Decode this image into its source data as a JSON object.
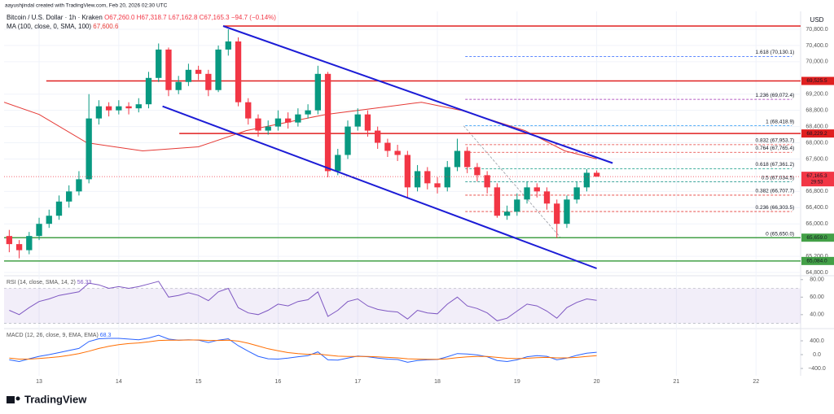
{
  "header": {
    "author": "aayushjindal created with TradingView.com, Feb 20, 2026 02:30 UTC",
    "symbol": "Bitcoin / U.S. Dollar · 1h · Kraken",
    "ohlc": [
      "O67,260.0",
      "H67,318.7",
      "L67,162.8",
      "C67,165.3",
      "−94.7 (−0.14%)"
    ],
    "brand": "TradingView"
  },
  "chart_data": [
    {
      "type": "candlestick",
      "currency": "USD",
      "x": [
        12.625,
        12.75,
        12.875,
        13.0,
        13.125,
        13.25,
        13.375,
        13.5,
        13.625,
        13.75,
        13.875,
        14.0,
        14.125,
        14.25,
        14.375,
        14.5,
        14.625,
        14.75,
        14.875,
        15.0,
        15.125,
        15.25,
        15.375,
        15.5,
        15.625,
        15.75,
        15.875,
        16.0,
        16.125,
        16.25,
        16.375,
        16.5,
        16.625,
        16.75,
        16.875,
        17.0,
        17.125,
        17.25,
        17.375,
        17.5,
        17.625,
        17.75,
        17.875,
        18.0,
        18.125,
        18.25,
        18.375,
        18.5,
        18.625,
        18.75,
        18.875,
        19.0,
        19.125,
        19.25,
        19.375,
        19.5,
        19.625,
        19.75,
        19.875,
        20.0
      ],
      "open": [
        65700,
        65500,
        65350,
        65700,
        66000,
        66200,
        66550,
        66800,
        67100,
        68600,
        68900,
        68800,
        68900,
        68850,
        68950,
        69600,
        70300,
        69300,
        69500,
        69800,
        69700,
        69300,
        70300,
        70500,
        69000,
        68600,
        68300,
        68400,
        68600,
        68500,
        68700,
        68800,
        69700,
        67300,
        67700,
        68400,
        68700,
        68300,
        68000,
        67800,
        67700,
        66900,
        67300,
        67000,
        66900,
        67400,
        67800,
        67400,
        67200,
        66900,
        66200,
        66300,
        66600,
        66900,
        66800,
        66500,
        66000,
        66600,
        66900,
        67260
      ],
      "high": [
        65850,
        65600,
        65800,
        66150,
        66350,
        66700,
        66950,
        67300,
        69200,
        69050,
        69000,
        69050,
        69000,
        69100,
        69750,
        70450,
        70350,
        69650,
        69950,
        69900,
        69800,
        70400,
        70800,
        70600,
        69100,
        68700,
        68550,
        68800,
        68750,
        68850,
        68950,
        69900,
        69750,
        67850,
        68550,
        68850,
        68800,
        68400,
        68100,
        67950,
        67800,
        67450,
        67400,
        67150,
        67550,
        68100,
        67900,
        67500,
        67300,
        67000,
        66450,
        66750,
        67050,
        67000,
        66900,
        66600,
        66700,
        67050,
        67350,
        67318.7
      ],
      "low": [
        65300,
        65150,
        65250,
        65600,
        65900,
        66100,
        66400,
        66700,
        67000,
        68450,
        68650,
        68700,
        68700,
        68750,
        68850,
        69500,
        69150,
        69200,
        69400,
        69550,
        69150,
        69250,
        70150,
        68900,
        68450,
        68150,
        68200,
        68300,
        68350,
        68400,
        68600,
        68700,
        67150,
        67200,
        67600,
        68300,
        68150,
        67850,
        67650,
        67550,
        66650,
        66800,
        66850,
        66750,
        66800,
        67300,
        67250,
        67050,
        66750,
        66150,
        66100,
        66200,
        66500,
        66650,
        66350,
        65650,
        65900,
        66500,
        66800,
        67162.8
      ],
      "close": [
        65500,
        65350,
        65700,
        66000,
        66200,
        66550,
        66800,
        67100,
        68600,
        68900,
        68800,
        68900,
        68850,
        68950,
        69600,
        70300,
        69300,
        69500,
        69800,
        69700,
        69300,
        70300,
        70500,
        69000,
        68600,
        68300,
        68400,
        68600,
        68500,
        68700,
        68800,
        69700,
        67300,
        67700,
        68400,
        68700,
        68300,
        68000,
        67800,
        67700,
        66900,
        67300,
        67000,
        66900,
        67400,
        67800,
        67400,
        67200,
        66900,
        66200,
        66300,
        66600,
        66900,
        66800,
        66500,
        66000,
        66600,
        66900,
        67260,
        67165.3
      ],
      "up_color": "#089981",
      "down_color": "#f23645",
      "xlim": [
        12.56,
        22.56
      ],
      "xticks": [
        13,
        14,
        15,
        16,
        17,
        18,
        19,
        20,
        21,
        22
      ],
      "ylim": [
        64740,
        71121
      ],
      "yticks": [
        {
          "value": 64800,
          "label": "64,800.0"
        },
        {
          "value": 65200,
          "label": "65,200.0"
        },
        {
          "value": 66000,
          "label": "66,000.0"
        },
        {
          "value": 66400,
          "label": "66,400.0"
        },
        {
          "value": 66800,
          "label": "66,800.0"
        },
        {
          "value": 67600,
          "label": "67,600.0"
        },
        {
          "value": 68000,
          "label": "68,000.0"
        },
        {
          "value": 68400,
          "label": "68,400.0"
        },
        {
          "value": 68800,
          "label": "68,800.0"
        },
        {
          "value": 69200,
          "label": "69,200.0"
        },
        {
          "value": 70000,
          "label": "70,000.0"
        },
        {
          "value": 70400,
          "label": "70,400.0"
        },
        {
          "value": 70800,
          "label": "70,800.0"
        }
      ],
      "grid": true,
      "ma": {
        "name": "MA (100, close, 0, SMA, 100)",
        "color": "#e53935",
        "legend_value": {
          "value": 67600.6,
          "label": "67,600.6"
        },
        "x": [
          12.56,
          13.0,
          13.6,
          14.3,
          15.0,
          15.6,
          16.1,
          16.6,
          17.4,
          17.8,
          18.3,
          19.1,
          19.6,
          20.0
        ],
        "values": [
          69000,
          68700,
          68000,
          67800,
          67900,
          68300,
          68500,
          68700,
          68900,
          69000,
          68800,
          68300,
          67800,
          67600.6
        ]
      },
      "last_price": {
        "value": 67165.3,
        "label": "67,165.3",
        "countdown": "29:53",
        "color": "#f23645"
      },
      "levels": [
        {
          "value": 70880,
          "x_from": 15.31,
          "color": "#e02020"
        },
        {
          "value": 69525.5,
          "label": "69,525.5",
          "x_from": 13.09,
          "color": "#e02020"
        },
        {
          "value": 68229.2,
          "label": "68,229.2",
          "x_from": 14.76,
          "color": "#e02020"
        },
        {
          "value": 65659.0,
          "label": "65,659.0",
          "x_from": 12.56,
          "color": "#43a047"
        },
        {
          "value": 65084.0,
          "label": "65,084.0",
          "x_from": 12.56,
          "color": "#43a047"
        }
      ],
      "trendlines": [
        {
          "x": [
            15.31,
            20.2
          ],
          "values": [
            70880,
            67500
          ],
          "color": "#1c1cd6"
        },
        {
          "x": [
            14.55,
            20.0
          ],
          "values": [
            68900,
            64900
          ],
          "color": "#1c1cd6"
        }
      ],
      "fib": {
        "x": [
          18.35,
          22.45
        ],
        "diagonal": {
          "x": [
            18.33,
            19.55
          ],
          "values": [
            68418.9,
            65650.0
          ]
        },
        "levels": [
          {
            "value": 70130.1,
            "label": "1.618 (70,130.1)",
            "color": "#2962ff"
          },
          {
            "value": 69072.4,
            "label": "1.236 (69,072.4)",
            "color": "#9c27b0"
          },
          {
            "value": 68418.9,
            "label": "1 (68,418.9)",
            "color": "#2196f3"
          },
          {
            "value": 67953.7,
            "label": "0.832 (67,953.7)",
            "color": "#e53935"
          },
          {
            "value": 67765.4,
            "label": "0.764 (67,765.4)",
            "color": "#e53935"
          },
          {
            "value": 67361.2,
            "label": "0.618 (67,361.2)",
            "color": "#089981"
          },
          {
            "value": 67034.5,
            "label": "0.5 (67,034.5)",
            "color": "#00897b"
          },
          {
            "value": 66707.7,
            "label": "0.382 (66,707.7)",
            "color": "#e53935"
          },
          {
            "value": 66303.5,
            "label": "0.236 (66,303.5)",
            "color": "#e53935"
          },
          {
            "value": 65650.0,
            "label": "0 (65,650.0)",
            "color": "#787b86"
          }
        ]
      }
    },
    {
      "type": "line",
      "title": "RSI (14, close, SMA, 14, 2)",
      "legend_value": {
        "value": 56.33,
        "label": "56.33"
      },
      "x": [
        12.625,
        12.75,
        12.875,
        13.0,
        13.125,
        13.25,
        13.375,
        13.5,
        13.625,
        13.75,
        13.875,
        14.0,
        14.125,
        14.25,
        14.375,
        14.5,
        14.625,
        14.75,
        14.875,
        15.0,
        15.125,
        15.25,
        15.375,
        15.5,
        15.625,
        15.75,
        15.875,
        16.0,
        16.125,
        16.25,
        16.375,
        16.5,
        16.625,
        16.75,
        16.875,
        17.0,
        17.125,
        17.25,
        17.375,
        17.5,
        17.625,
        17.75,
        17.875,
        18.0,
        18.125,
        18.25,
        18.375,
        18.5,
        18.625,
        18.75,
        18.875,
        19.0,
        19.125,
        19.25,
        19.375,
        19.5,
        19.625,
        19.75,
        19.875,
        20.0
      ],
      "series": [
        {
          "name": "RSI",
          "color": "#7e57c2",
          "values": [
            45,
            40,
            48,
            55,
            58,
            62,
            64,
            66,
            76,
            74,
            70,
            72,
            70,
            72,
            75,
            78,
            60,
            62,
            65,
            62,
            56,
            66,
            70,
            48,
            42,
            40,
            45,
            52,
            50,
            55,
            57,
            66,
            38,
            45,
            55,
            58,
            50,
            46,
            44,
            43,
            35,
            45,
            42,
            41,
            52,
            60,
            50,
            47,
            42,
            33,
            36,
            44,
            52,
            50,
            44,
            36,
            48,
            54,
            58,
            56.33
          ]
        }
      ],
      "band": [
        30,
        70
      ],
      "ylim": [
        25,
        83.5
      ],
      "yticks": [
        {
          "value": 40,
          "label": "40.00"
        },
        {
          "value": 60,
          "label": "60.00"
        },
        {
          "value": 80,
          "label": "80.00"
        }
      ]
    },
    {
      "type": "line",
      "title": "MACD (12, 26, close, 9, EMA, EMA)",
      "legend_value": {
        "value": 68.3,
        "label": "68.3"
      },
      "x": [
        12.625,
        12.75,
        12.875,
        13.0,
        13.125,
        13.25,
        13.375,
        13.5,
        13.625,
        13.75,
        13.875,
        14.0,
        14.125,
        14.25,
        14.375,
        14.5,
        14.625,
        14.75,
        14.875,
        15.0,
        15.125,
        15.25,
        15.375,
        15.5,
        15.625,
        15.75,
        15.875,
        16.0,
        16.125,
        16.25,
        16.375,
        16.5,
        16.625,
        16.75,
        16.875,
        17.0,
        17.125,
        17.25,
        17.375,
        17.5,
        17.625,
        17.75,
        17.875,
        18.0,
        18.125,
        18.25,
        18.375,
        18.5,
        18.625,
        18.75,
        18.875,
        19.0,
        19.125,
        19.25,
        19.375,
        19.5,
        19.625,
        19.75,
        19.875,
        20.0
      ],
      "series": [
        {
          "name": "MACD",
          "color": "#2962ff",
          "values": [
            -150,
            -200,
            -120,
            -50,
            0,
            60,
            120,
            180,
            380,
            460,
            470,
            470,
            450,
            430,
            480,
            560,
            450,
            420,
            430,
            420,
            350,
            420,
            460,
            260,
            100,
            -50,
            -120,
            -130,
            -100,
            -60,
            -30,
            80,
            -150,
            -160,
            -100,
            -40,
            -60,
            -100,
            -130,
            -140,
            -220,
            -170,
            -150,
            -140,
            -60,
            30,
            20,
            -10,
            -60,
            -170,
            -200,
            -150,
            -60,
            -30,
            -50,
            -150,
            -100,
            -20,
            40,
            68.3
          ]
        },
        {
          "name": "Signal",
          "color": "#ff6d00",
          "values": [
            -100,
            -130,
            -130,
            -110,
            -90,
            -60,
            -20,
            30,
            100,
            180,
            240,
            290,
            320,
            340,
            370,
            410,
            420,
            420,
            425,
            425,
            410,
            410,
            420,
            390,
            330,
            250,
            170,
            110,
            60,
            30,
            10,
            20,
            -15,
            -45,
            -55,
            -55,
            -55,
            -65,
            -80,
            -95,
            -120,
            -130,
            -135,
            -135,
            -120,
            -90,
            -65,
            -55,
            -55,
            -80,
            -105,
            -115,
            -105,
            -90,
            -80,
            -95,
            -95,
            -80,
            -55,
            -30
          ]
        }
      ],
      "ylim": [
        -612,
        730
      ],
      "yticks": [
        {
          "value": -400,
          "label": "−400.0"
        },
        {
          "value": 0,
          "label": "0.0"
        },
        {
          "value": 400,
          "label": "400.0"
        }
      ]
    }
  ]
}
